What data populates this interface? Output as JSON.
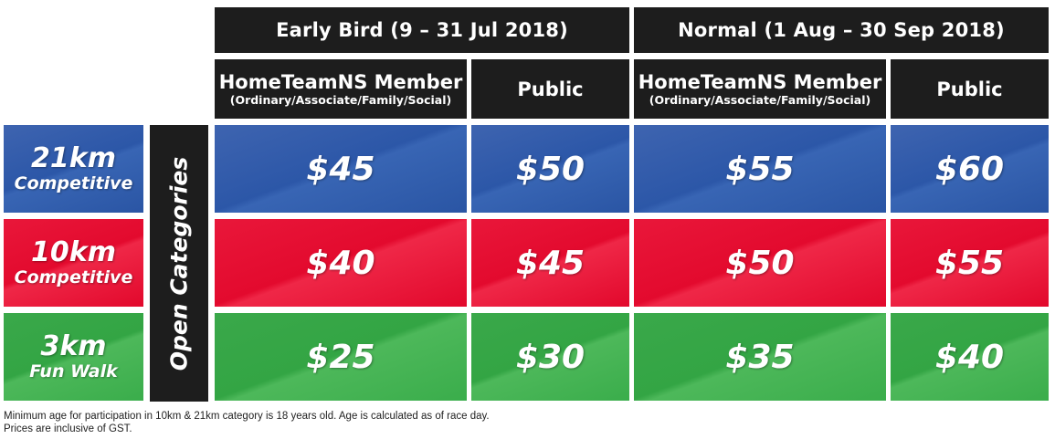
{
  "periods": {
    "early": "Early  Bird (9 – 31 Jul 2018)",
    "normal": "Normal (1 Aug – 30 Sep 2018)"
  },
  "columns": {
    "member_label": "HomeTeamNS Member",
    "member_sub": "(Ordinary/Associate/Family/Social)",
    "public_label": "Public"
  },
  "side_label": "Open Categories",
  "rows": [
    {
      "distance": "21km",
      "kind": "Competitive",
      "prices": [
        "$45",
        "$50",
        "$55",
        "$60"
      ]
    },
    {
      "distance": "10km",
      "kind": "Competitive",
      "prices": [
        "$40",
        "$45",
        "$50",
        "$55"
      ]
    },
    {
      "distance": "3km",
      "kind": "Fun Walk",
      "prices": [
        "$25",
        "$30",
        "$35",
        "$40"
      ]
    }
  ],
  "footnotes": [
    "Minimum age for participation in 10km & 21km category is 18 years old. Age is calculated as of race day.",
    "Prices are inclusive of GST."
  ],
  "colors": {
    "blue": "#2c57a8",
    "red": "#e30a2e",
    "green": "#33a544",
    "header": "#1d1d1d"
  }
}
